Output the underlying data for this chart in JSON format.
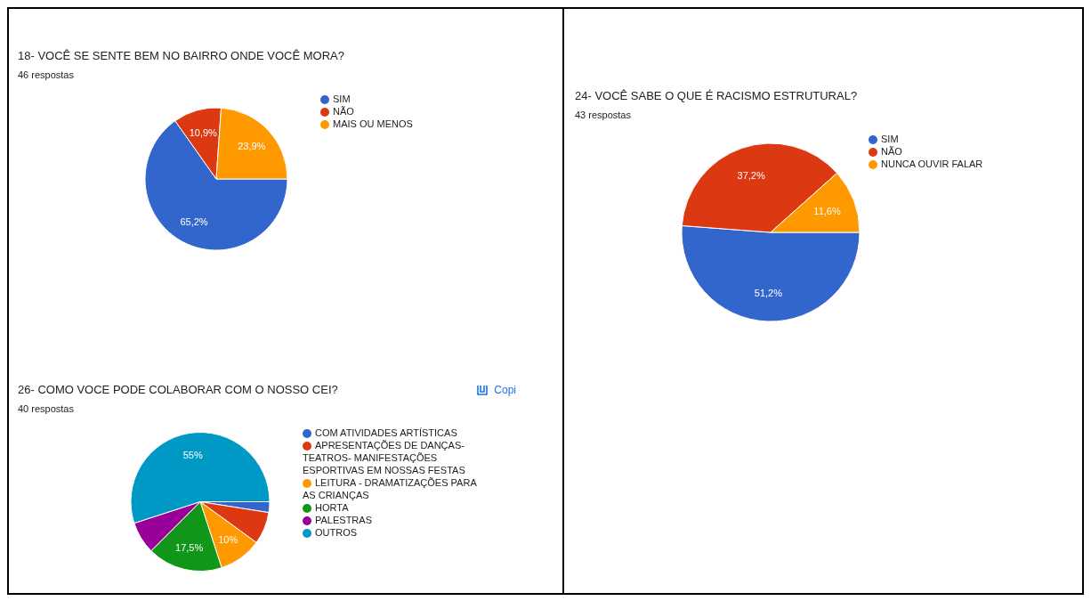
{
  "chart_data": [
    {
      "type": "pie",
      "title": "18- VOCÊ SE SENTE BEM NO BAIRRO ONDE VOCÊ MORA?",
      "subtitle": "46 respostas",
      "categories": [
        "SIM",
        "NÃO",
        "MAIS OU MENOS"
      ],
      "values": [
        65.2,
        10.9,
        23.9
      ],
      "colors": [
        "#3366cc",
        "#dc3912",
        "#ff9900"
      ],
      "value_labels": [
        "65,2%",
        "10,9%",
        "23,9%"
      ],
      "legend": "right"
    },
    {
      "type": "pie",
      "title": "24- VOCÊ SABE O QUE É RACISMO ESTRUTURAL?",
      "subtitle": "43 respostas",
      "categories": [
        "SIM",
        "NÃO",
        "NUNCA OUVIR FALAR"
      ],
      "values": [
        51.2,
        37.2,
        11.6
      ],
      "colors": [
        "#3366cc",
        "#dc3912",
        "#ff9900"
      ],
      "value_labels": [
        "51,2%",
        "37,2%",
        "11,6%"
      ],
      "legend": "right"
    },
    {
      "type": "pie",
      "title": "26- COMO VOCE PODE  COLABORAR COM O NOSSO CEI?",
      "subtitle": "40 respostas",
      "categories": [
        "COM ATIVIDADES ARTÍSTICAS",
        "APRESENTAÇÕES DE DANÇAS- TEATROS- MANIFESTAÇÕES ESPORTIVAS EM NOSSAS FESTAS",
        "LEITURA - DRAMATIZAÇÕES PARA AS CRIANÇAS",
        "HORTA",
        "PALESTRAS",
        "OUTROS"
      ],
      "values": [
        2.5,
        7.5,
        10,
        17.5,
        7.5,
        55
      ],
      "colors": [
        "#3366cc",
        "#dc3912",
        "#ff9900",
        "#109618",
        "#990099",
        "#0099c6"
      ],
      "value_labels": [
        null,
        null,
        "10%",
        "17,5%",
        null,
        "55%"
      ],
      "legend": "right",
      "annotations": [
        "Copi"
      ]
    }
  ]
}
